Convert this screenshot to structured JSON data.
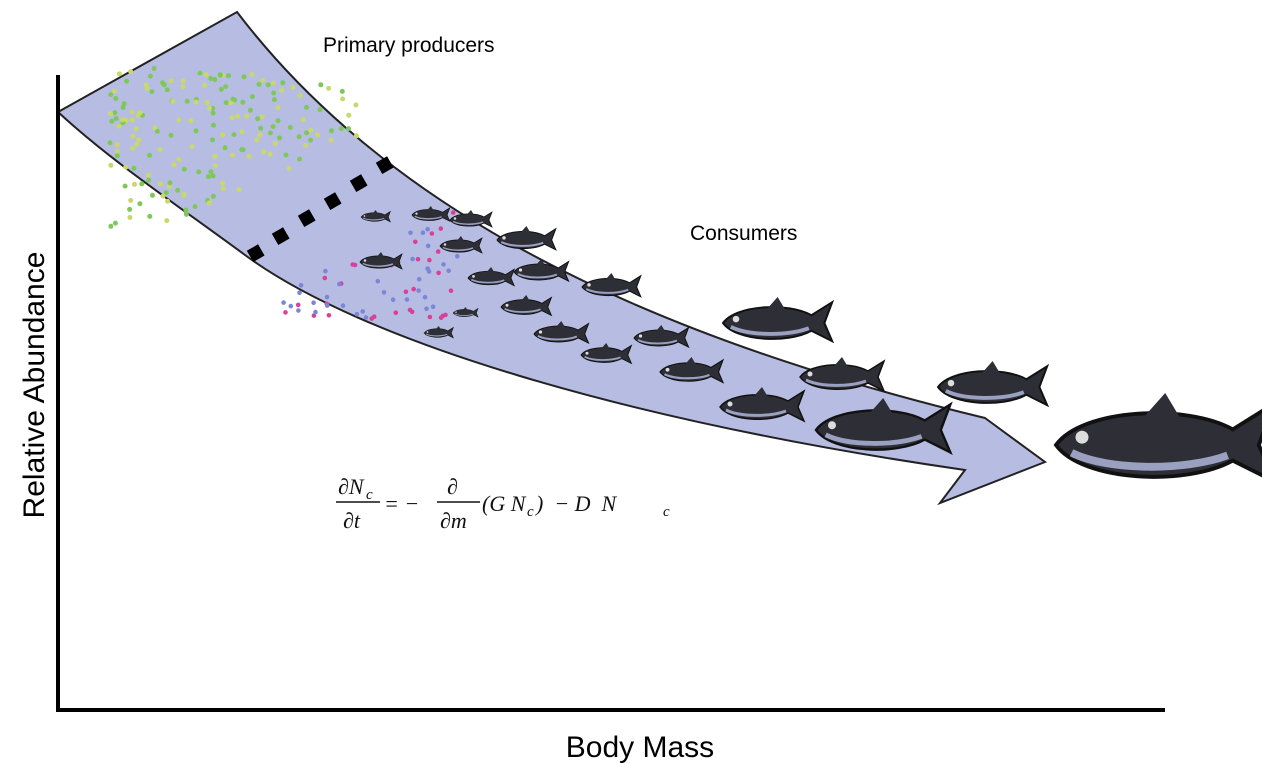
{
  "labels": {
    "producers": "Primary producers",
    "consumers": "Consumers",
    "y_axis": "Relative Abundance",
    "x_axis": "Body Mass"
  },
  "equation": {
    "lhs_num": "∂N",
    "lhs_sub": "c",
    "lhs_den": "∂t",
    "equals": "= −",
    "op_num": "∂",
    "op_den": "∂m",
    "term1": "(G N",
    "term1_sub": "c",
    "term2": ")  − D  N",
    "term2_sub": "c"
  }
}
